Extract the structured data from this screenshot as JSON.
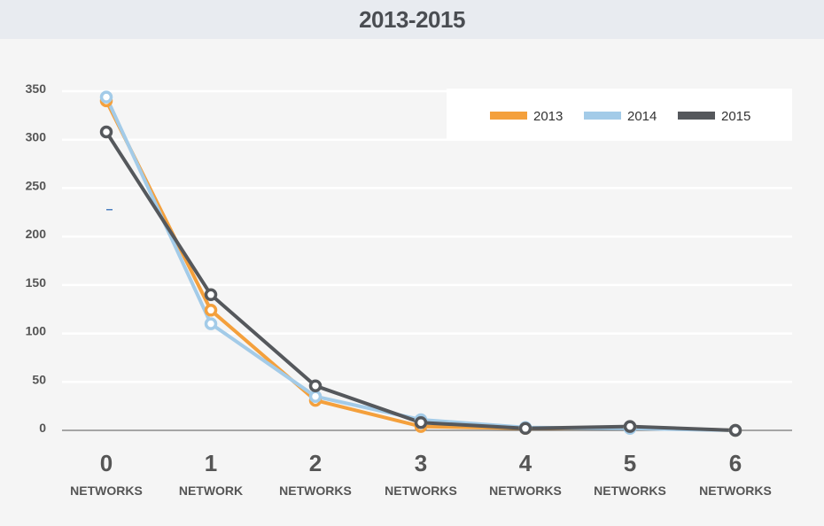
{
  "header": {
    "title": "2013-2015"
  },
  "chart_data": {
    "type": "line",
    "title": "2013-2015",
    "categories": [
      "0 NETWORKS",
      "1 NETWORK",
      "2 NETWORKS",
      "3 NETWORKS",
      "4 NETWORKS",
      "5 NETWORKS",
      "6 NETWORKS"
    ],
    "x_numbers": [
      "0",
      "1",
      "2",
      "3",
      "4",
      "5",
      "6"
    ],
    "x_words": [
      "NETWORKS",
      "NETWORK",
      "NETWORKS",
      "NETWORKS",
      "NETWORKS",
      "NETWORKS",
      "NETWORKS"
    ],
    "yticks": [
      "350",
      "300",
      "250",
      "200",
      "150",
      "100",
      "50",
      "0"
    ],
    "ylim": [
      0,
      350
    ],
    "grid": true,
    "legend_position": "top-right",
    "series": [
      {
        "name": "2013",
        "color": "#f4a03c",
        "values": [
          340,
          124,
          31,
          4,
          2,
          3,
          0
        ]
      },
      {
        "name": "2014",
        "color": "#a3cbe8",
        "values": [
          344,
          110,
          35,
          11,
          3,
          2,
          0
        ]
      },
      {
        "name": "2015",
        "color": "#55585c",
        "values": [
          308,
          140,
          46,
          8,
          2,
          4,
          0
        ]
      }
    ]
  }
}
